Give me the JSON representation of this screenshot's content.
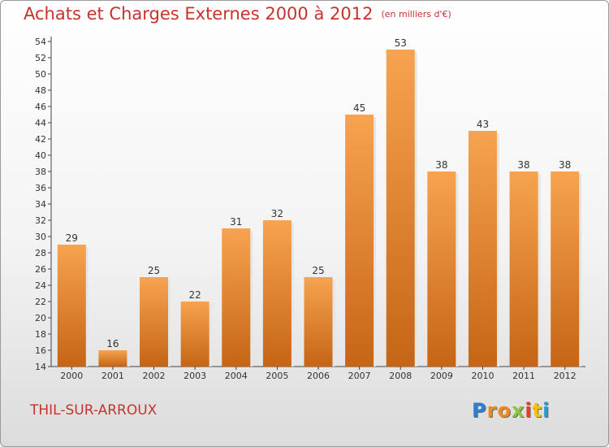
{
  "title": "Achats et Charges Externes 2000 à 2012",
  "subtitle": "(en milliers d'€)",
  "commune": "THIL-SUR-ARROUX",
  "logo": {
    "letters": [
      "P",
      "r",
      "o",
      "x",
      "i",
      "t",
      "i"
    ],
    "colors": [
      "#2d7fd0",
      "#f08a1c",
      "#f08a1c",
      "#8cc63f",
      "#e63c2f",
      "#f6c100",
      "#2d9ad8"
    ]
  },
  "colors": {
    "accent": "#c8322d",
    "bar_top": "#f7a34f",
    "bar_bottom": "#c56515"
  },
  "chart_data": {
    "type": "bar",
    "categories": [
      "2000",
      "2001",
      "2002",
      "2003",
      "2004",
      "2005",
      "2006",
      "2007",
      "2008",
      "2009",
      "2010",
      "2011",
      "2012"
    ],
    "values": [
      29,
      16,
      25,
      22,
      31,
      32,
      25,
      45,
      53,
      38,
      43,
      38,
      38
    ],
    "data_labels": [
      "29",
      "16",
      "25",
      "22",
      "31",
      "32",
      "25",
      "45",
      "53",
      "38",
      "43",
      "38",
      "38"
    ],
    "title": "Achats et Charges Externes 2000 à 2012",
    "xlabel": "",
    "ylabel": "",
    "ylim": [
      14,
      54
    ],
    "yticks": [
      "14",
      "16",
      "18",
      "20",
      "22",
      "24",
      "26",
      "28",
      "30",
      "32",
      "34",
      "36",
      "38",
      "40",
      "42",
      "44",
      "46",
      "48",
      "50",
      "52",
      "54"
    ],
    "grid": false,
    "legend": "none"
  }
}
